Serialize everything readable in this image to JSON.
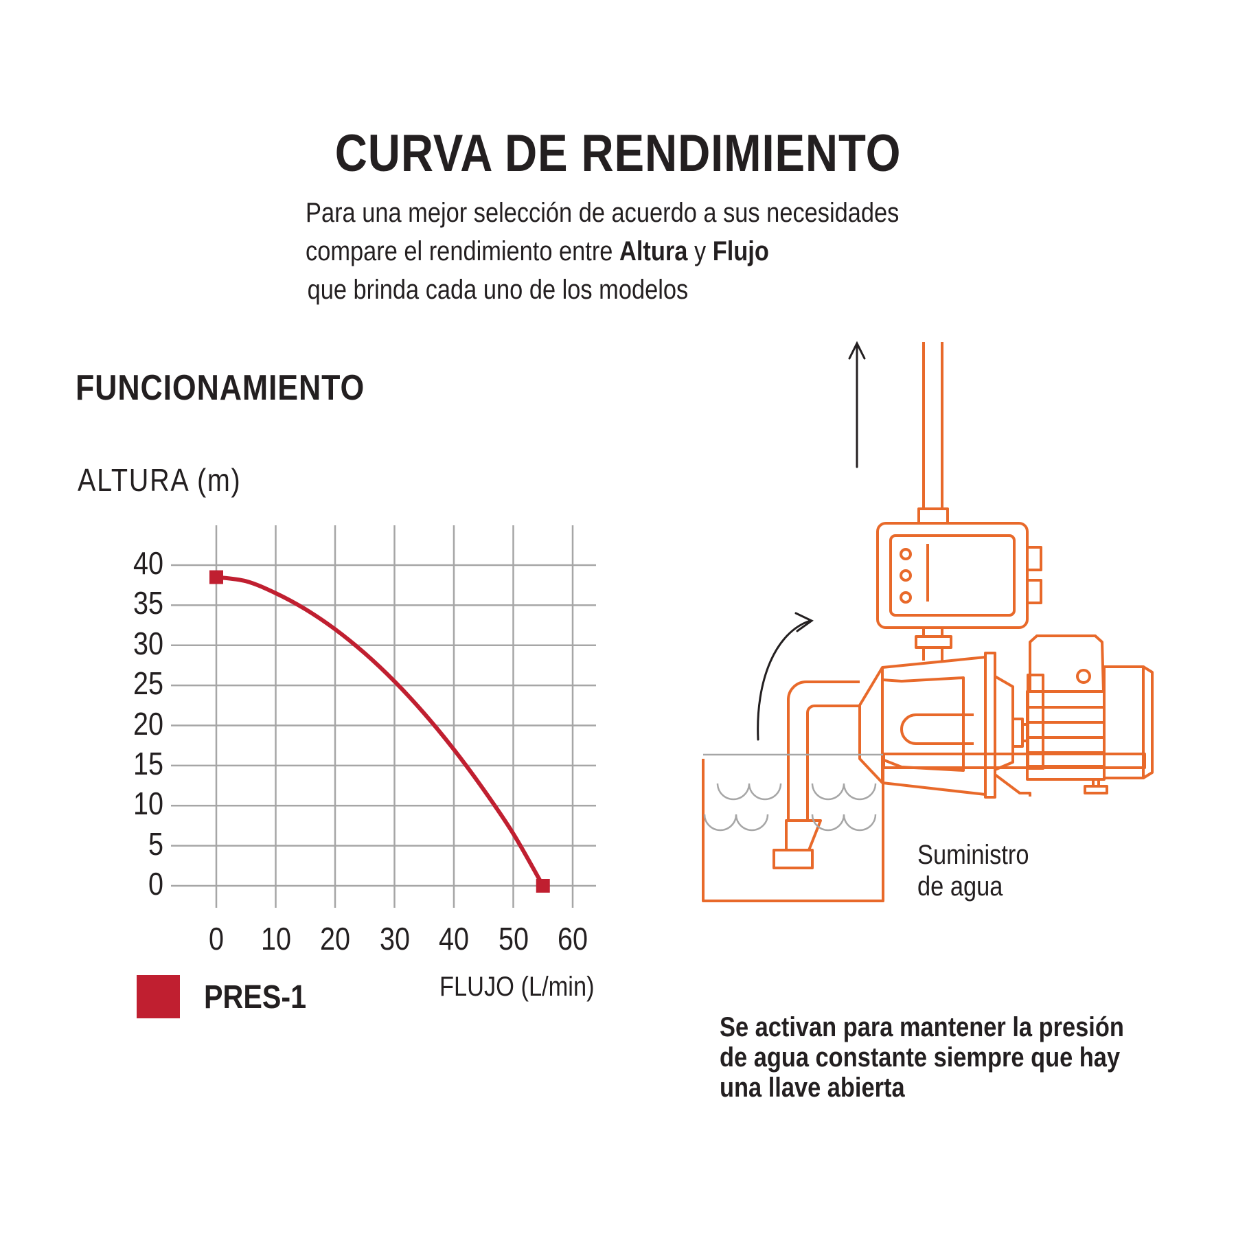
{
  "header": {
    "title": "CURVA DE RENDIMIENTO",
    "intro_line1": "Para una mejor selección de acuerdo a sus necesidades",
    "intro_line2_prefix": "compare el rendimiento entre ",
    "intro_bold1": "Altura",
    "intro_conj": " y ",
    "intro_bold2": "Flujo",
    "intro_line3": "que brinda cada uno de los modelos"
  },
  "section_title": "FUNCIONAMIENTO",
  "diagram": {
    "supply_label_line1": "Suministro",
    "supply_label_line2": "de agua",
    "note_line1": "Se activan para mantener la presión",
    "note_line2": "de agua constante siempre que hay",
    "note_line3": "una llave abierta",
    "colors": {
      "outline": "#e8692a",
      "arrow": "#231f20",
      "water": "#a6a6a6"
    }
  },
  "chart_data": {
    "type": "line",
    "title": "FUNCIONAMIENTO",
    "xlabel": "FLUJO (L/min)",
    "ylabel": "ALTURA (m)",
    "xlim": [
      0,
      60
    ],
    "ylim": [
      0,
      40
    ],
    "x_ticks": [
      "0",
      "10",
      "20",
      "30",
      "40",
      "50",
      "60"
    ],
    "y_ticks": [
      "40",
      "35",
      "30",
      "25",
      "20",
      "15",
      "10",
      "5",
      "0"
    ],
    "grid": true,
    "legend_position": "bottom-left",
    "series": [
      {
        "name": "PRES-1",
        "color": "#c01f30",
        "x": [
          0,
          5,
          10,
          15,
          20,
          25,
          30,
          35,
          40,
          45,
          50,
          55
        ],
        "y": [
          38.5,
          38.0,
          36.5,
          34.5,
          32.0,
          29.0,
          25.5,
          21.5,
          17.0,
          12.0,
          6.5,
          0
        ]
      }
    ]
  }
}
